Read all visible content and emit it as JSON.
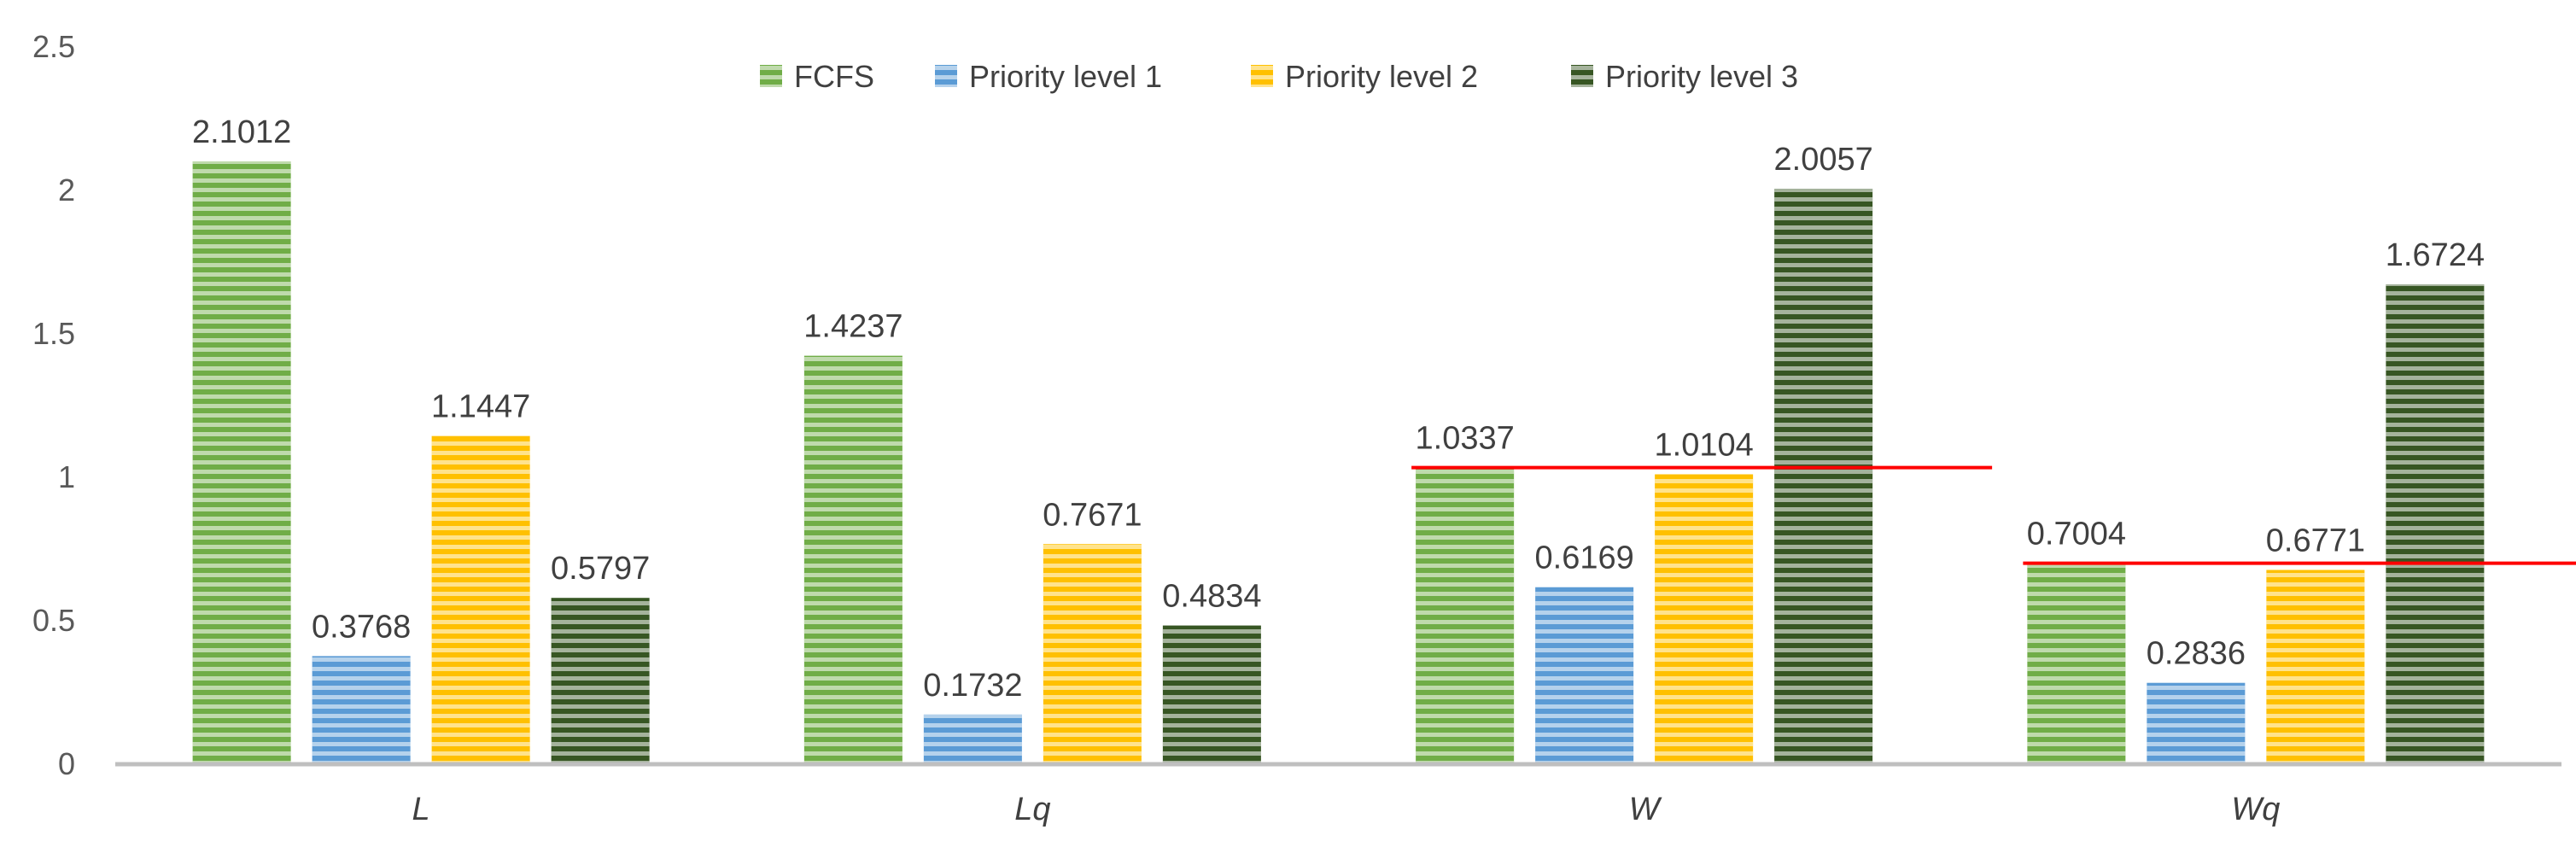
{
  "chart_data": {
    "type": "bar",
    "title": "",
    "xlabel": "",
    "ylabel": "",
    "categories": [
      "L",
      "Lq",
      "W",
      "Wq"
    ],
    "ylim": [
      0,
      2.5
    ],
    "yticks": [
      "0",
      "0.5",
      "1",
      "1.5",
      "2",
      "2.5"
    ],
    "ytick_values": [
      0,
      0.5,
      1,
      1.5,
      2,
      2.5
    ],
    "legend_position": "top-center",
    "series": [
      {
        "name": "FCFS",
        "color": "#70AD47",
        "values": [
          2.1012,
          1.4237,
          1.0337,
          0.7004
        ],
        "labels": [
          "2.1012",
          "1.4237",
          "1.0337",
          "0.7004"
        ]
      },
      {
        "name": "Priority level 1",
        "color": "#5B9BD5",
        "values": [
          0.3768,
          0.1732,
          0.6169,
          0.2836
        ],
        "labels": [
          "0.3768",
          "0.1732",
          "0.6169",
          "0.2836"
        ]
      },
      {
        "name": "Priority level 2",
        "color": "#FFC000",
        "values": [
          1.1447,
          0.7671,
          1.0104,
          0.6771
        ],
        "labels": [
          "1.1447",
          "0.7671",
          "1.0104",
          "0.6771"
        ]
      },
      {
        "name": "Priority level 3",
        "color": "#375623",
        "values": [
          0.5797,
          0.4834,
          2.0057,
          1.6724
        ],
        "labels": [
          "0.5797",
          "0.4834",
          "2.0057",
          "1.6724"
        ]
      }
    ],
    "reference_lines": [
      {
        "category": "W",
        "value": 1.0337,
        "color": "#FF0000"
      },
      {
        "category": "Wq",
        "value": 0.7004,
        "color": "#FF0000"
      }
    ]
  }
}
